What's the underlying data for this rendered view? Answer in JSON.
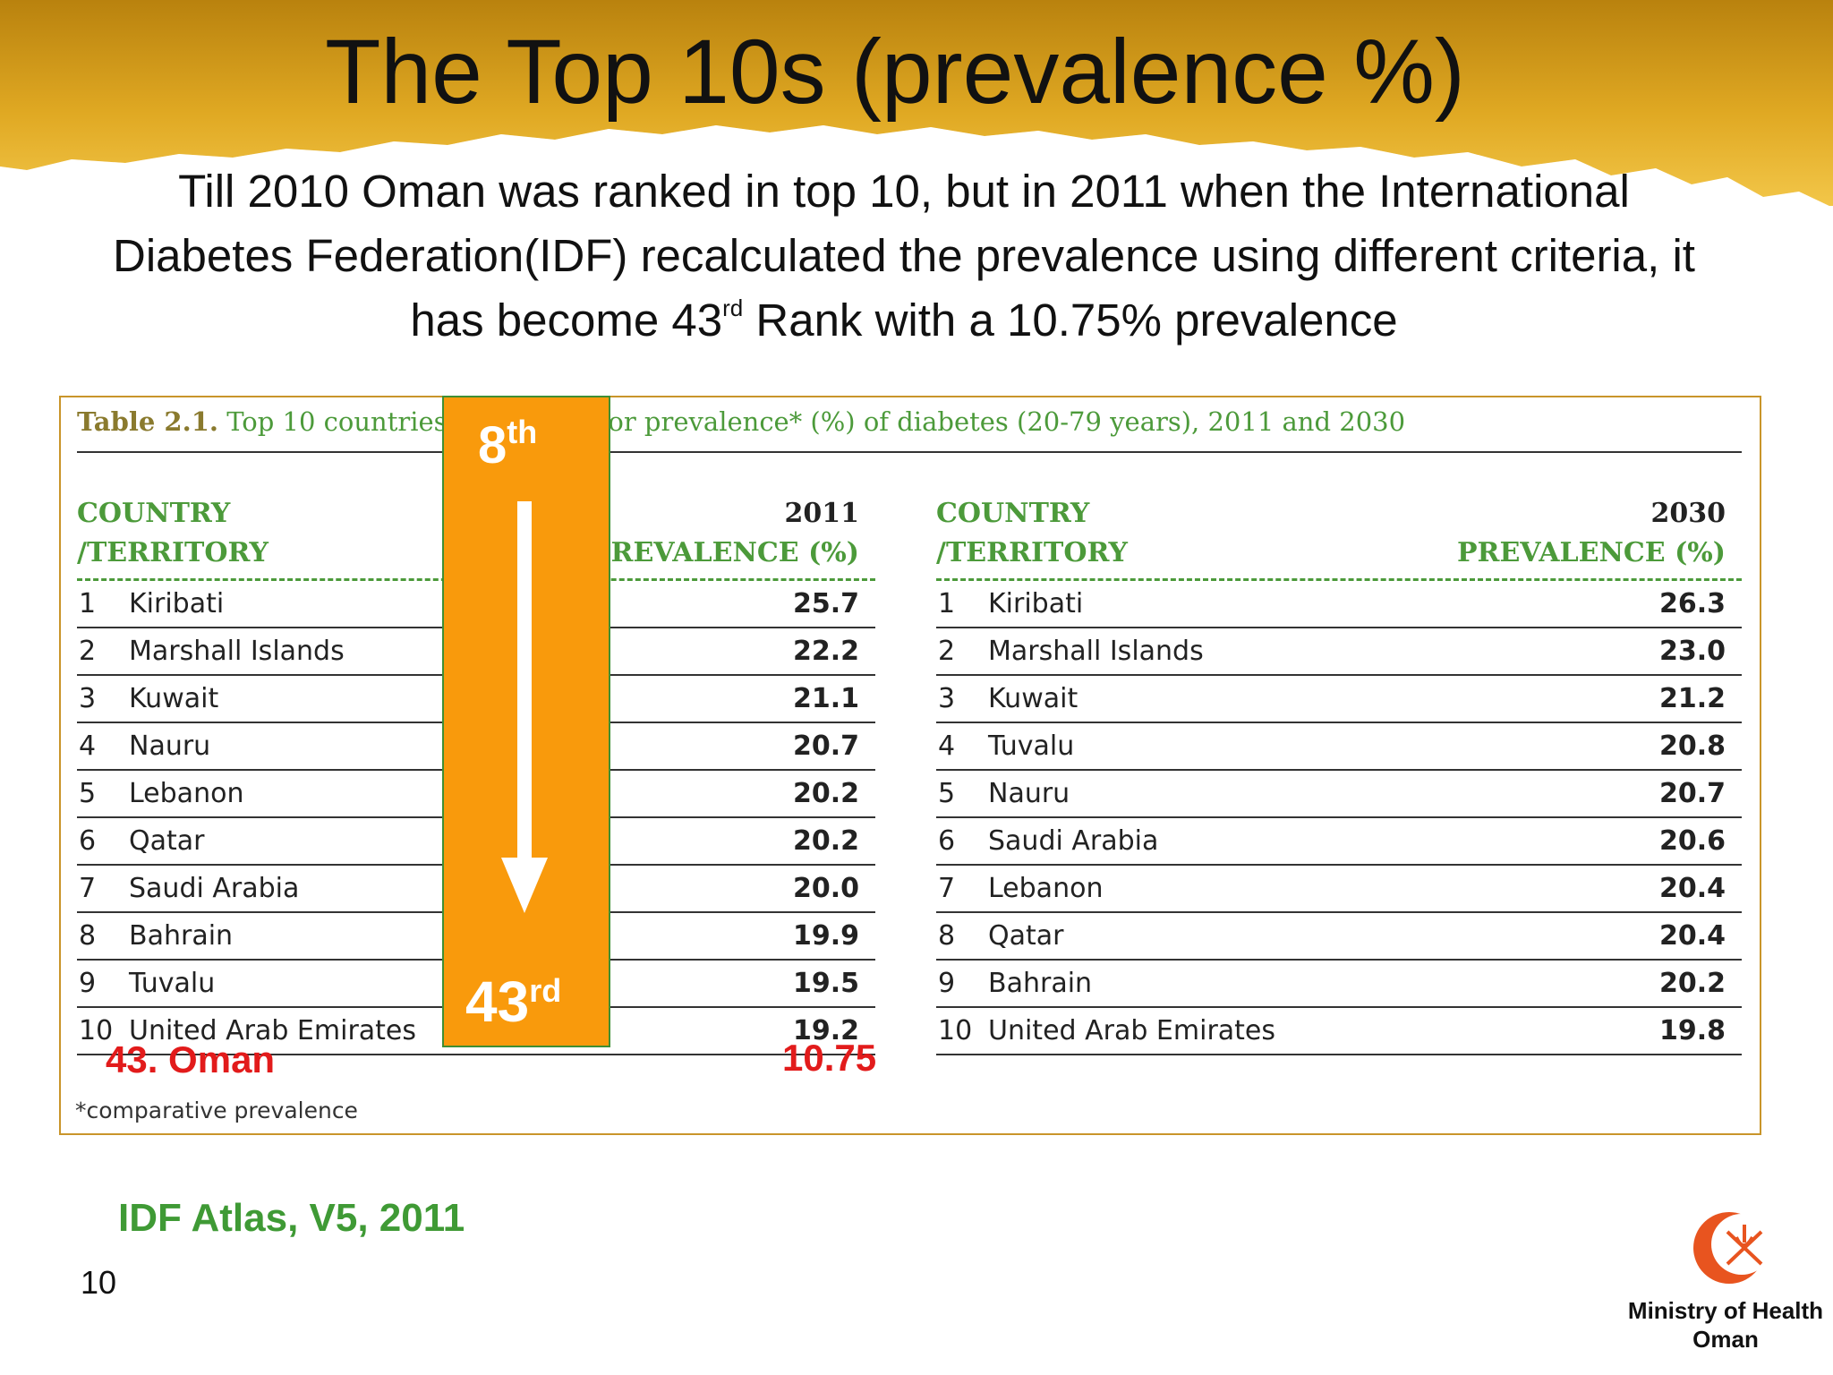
{
  "slide": {
    "title": "The Top 10s (prevalence %)",
    "intro_part1": "Till 2010 Oman was ranked in top 10,  but in 2011 when the International Diabetes Federation(IDF) recalculated the prevalence using different criteria, it has become 43",
    "intro_sup": "rd",
    "intro_part2": " Rank with a 10.75% prevalence",
    "page_number": "10"
  },
  "table": {
    "caption_label": "Table 2.1.",
    "caption_text": " Top 10 countries/territories for prevalence* (%) of diabetes (20-79 years), 2011 and 2030",
    "left": {
      "head_country_1": "COUNTRY",
      "head_country_2": "/TERRITORY",
      "head_year": "2011",
      "head_prev": "PREVALENCE (%)",
      "rows": [
        {
          "rank": "1",
          "country": "Kiribati",
          "value": "25.7"
        },
        {
          "rank": "2",
          "country": "Marshall Islands",
          "value": "22.2"
        },
        {
          "rank": "3",
          "country": "Kuwait",
          "value": "21.1"
        },
        {
          "rank": "4",
          "country": "Nauru",
          "value": "20.7"
        },
        {
          "rank": "5",
          "country": "Lebanon",
          "value": "20.2"
        },
        {
          "rank": "6",
          "country": "Qatar",
          "value": "20.2"
        },
        {
          "rank": "7",
          "country": "Saudi Arabia",
          "value": "20.0"
        },
        {
          "rank": "8",
          "country": "Bahrain",
          "value": "19.9"
        },
        {
          "rank": "9",
          "country": "Tuvalu",
          "value": "19.5"
        },
        {
          "rank": "10",
          "country": "United Arab Emirates",
          "value": "19.2"
        }
      ]
    },
    "right": {
      "head_country_1": "COUNTRY",
      "head_country_2": "/TERRITORY",
      "head_year": "2030",
      "head_prev": "PREVALENCE (%)",
      "rows": [
        {
          "rank": "1",
          "country": "Kiribati",
          "value": "26.3"
        },
        {
          "rank": "2",
          "country": "Marshall Islands",
          "value": "23.0"
        },
        {
          "rank": "3",
          "country": "Kuwait",
          "value": "21.2"
        },
        {
          "rank": "4",
          "country": "Tuvalu",
          "value": "20.8"
        },
        {
          "rank": "5",
          "country": "Nauru",
          "value": "20.7"
        },
        {
          "rank": "6",
          "country": "Saudi Arabia",
          "value": "20.6"
        },
        {
          "rank": "7",
          "country": "Lebanon",
          "value": "20.4"
        },
        {
          "rank": "8",
          "country": "Qatar",
          "value": "20.4"
        },
        {
          "rank": "9",
          "country": "Bahrain",
          "value": "20.2"
        },
        {
          "rank": "10",
          "country": "United Arab Emirates",
          "value": "19.8"
        }
      ]
    },
    "footnote": "*comparative prevalence"
  },
  "overlay": {
    "rank_before": "8",
    "rank_before_sup": "th",
    "rank_after": "43",
    "rank_after_sup": "rd",
    "oman_label": "43. Oman",
    "oman_value": "10.75",
    "colors": {
      "box": "#f99a0c",
      "highlight": "#e21b1b",
      "source": "#3f9a35"
    }
  },
  "source": "IDF Atlas, V5, 2011",
  "logo": {
    "icon": "ministry-crescent-emblem-icon",
    "line1": "Ministry of Health",
    "line2": "Oman"
  }
}
